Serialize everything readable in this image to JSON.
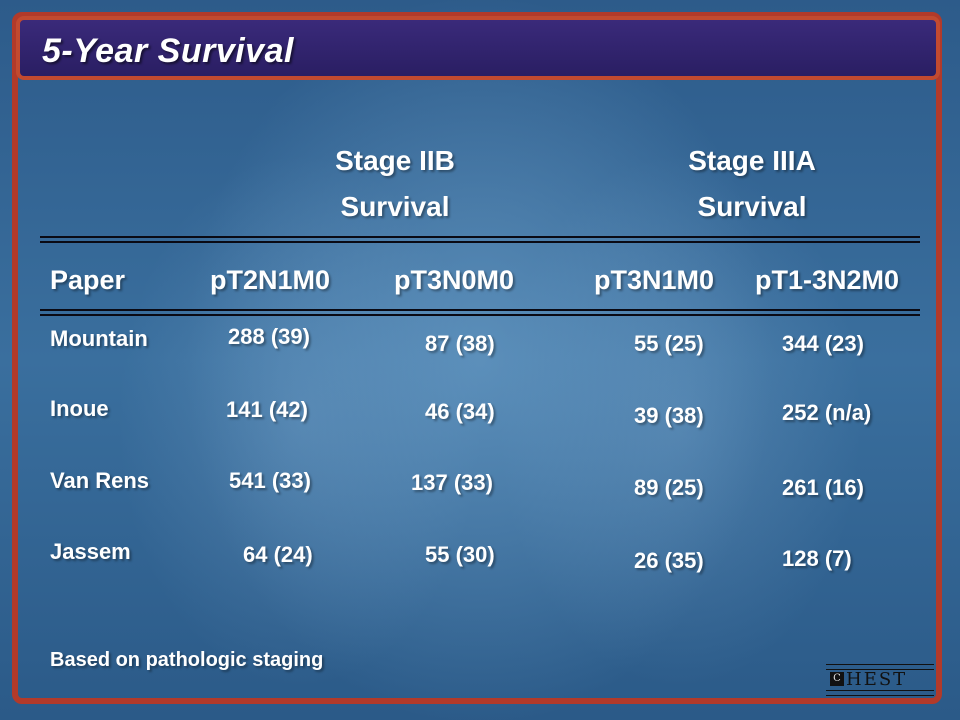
{
  "slide": {
    "title": "5-Year Survival",
    "group_headers": [
      {
        "line1": "Stage IIB",
        "line2": "Survival"
      },
      {
        "line1": "Stage IIIA",
        "line2": "Survival"
      }
    ],
    "column_headers": [
      "Paper",
      "pT2N1M0",
      "pT3N0M0",
      "pT3N1M0",
      "pT1-3N2M0"
    ],
    "rows": [
      {
        "paper": "Mountain",
        "values": [
          "288 (39)",
          "87 (38)",
          "55 (25)",
          "344 (23)"
        ]
      },
      {
        "paper": "Inoue",
        "values": [
          "141 (42)",
          "46 (34)",
          "39 (38)",
          "252 (n/a)"
        ]
      },
      {
        "paper": "Van Rens",
        "values": [
          "541 (33)",
          "137 (33)",
          "89 (25)",
          "261 (16)"
        ]
      },
      {
        "paper": "Jassem",
        "values": [
          "64 (24)",
          "55 (30)",
          "26 (35)",
          "128 (7)"
        ]
      }
    ],
    "footnote": "Based on pathologic staging",
    "logo": {
      "mark": "C",
      "word": "HEST"
    },
    "colors": {
      "frame": "#b23a2a",
      "title_bar": "#2a1e63",
      "text": "#ffffff"
    }
  }
}
